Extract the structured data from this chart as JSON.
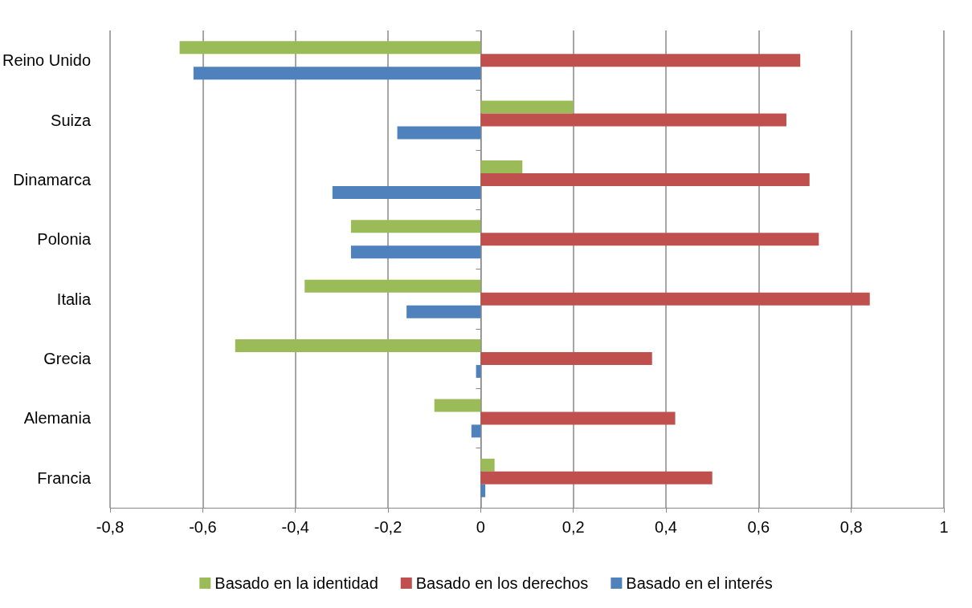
{
  "chart_data": {
    "type": "bar",
    "orientation": "horizontal",
    "categories": [
      "Reino Unido",
      "Suiza",
      "Dinamarca",
      "Polonia",
      "Italia",
      "Grecia",
      "Alemania",
      "Francia"
    ],
    "series": [
      {
        "name": "Basado en la identidad",
        "color": "#9bbb59",
        "values": [
          -0.65,
          0.2,
          0.09,
          -0.28,
          -0.38,
          -0.53,
          -0.1,
          0.03
        ]
      },
      {
        "name": "Basado en los derechos",
        "color": "#c0504d",
        "values": [
          0.69,
          0.66,
          0.71,
          0.73,
          0.84,
          0.37,
          0.42,
          0.5
        ]
      },
      {
        "name": "Basado en el interés",
        "color": "#4f81bd",
        "values": [
          -0.62,
          -0.18,
          -0.32,
          -0.28,
          -0.16,
          -0.01,
          -0.02,
          0.01
        ]
      }
    ],
    "xlim": [
      -0.8,
      1
    ],
    "xticks": [
      {
        "value": -0.8,
        "label": "-0,8"
      },
      {
        "value": -0.6,
        "label": "-0,6"
      },
      {
        "value": -0.4,
        "label": "-0,4"
      },
      {
        "value": -0.2,
        "label": "-0,2"
      },
      0,
      {
        "value": 0.2,
        "label": "0,2"
      },
      {
        "value": 0.4,
        "label": "0,4"
      },
      {
        "value": 0.6,
        "label": "0,6"
      },
      {
        "value": 0.8,
        "label": "0,8"
      },
      1
    ],
    "grid": "x",
    "legend": "bottom"
  }
}
